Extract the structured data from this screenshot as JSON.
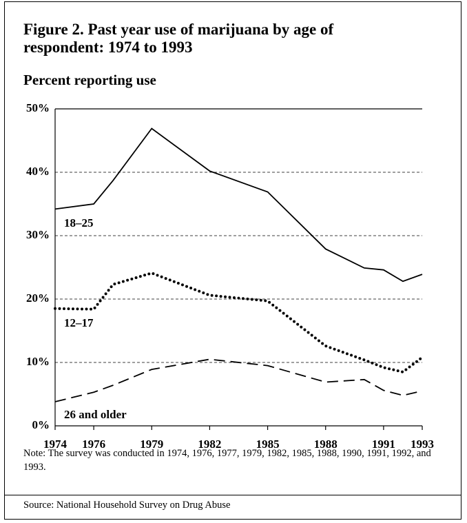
{
  "chart_data": {
    "type": "line",
    "title": "Figure 2. Past year use of marijuana by age of respondent: 1974 to 1993",
    "y_label": "Percent reporting use",
    "x": [
      1974,
      1976,
      1977,
      1979,
      1982,
      1985,
      1988,
      1990,
      1991,
      1992,
      1993
    ],
    "xlim": [
      1974,
      1993
    ],
    "xticks": [
      1974,
      1976,
      1979,
      1982,
      1985,
      1988,
      1991,
      1993
    ],
    "ylim": [
      0,
      50
    ],
    "yticks": [
      {
        "value": 0,
        "label": "0%"
      },
      {
        "value": 10,
        "label": "10%"
      },
      {
        "value": 20,
        "label": "20%"
      },
      {
        "value": 30,
        "label": "30%"
      },
      {
        "value": 40,
        "label": "40%"
      },
      {
        "value": 50,
        "label": "50%"
      }
    ],
    "grid": true,
    "series": [
      {
        "name": "18–25",
        "color": "#000000",
        "line_style": "solid",
        "values": [
          34.2,
          35.0,
          38.7,
          46.9,
          40.2,
          36.9,
          27.9,
          24.9,
          24.6,
          22.8,
          23.9
        ]
      },
      {
        "name": "12–17",
        "color": "#000000",
        "line_style": "dotted",
        "values": [
          18.5,
          18.4,
          22.3,
          24.1,
          20.6,
          19.7,
          12.6,
          10.4,
          9.2,
          8.5,
          10.8
        ]
      },
      {
        "name": "26 and older",
        "color": "#000000",
        "line_style": "dashed",
        "values": [
          3.8,
          5.3,
          6.4,
          8.9,
          10.5,
          9.5,
          6.9,
          7.3,
          5.6,
          4.8,
          5.5
        ]
      }
    ],
    "note": "Note:  The survey was conducted in 1974, 1976, 1977, 1979, 1982, 1985, 1988, 1990, 1991, 1992, and 1993.",
    "source": "Source:  National Household Survey on Drug Abuse"
  }
}
